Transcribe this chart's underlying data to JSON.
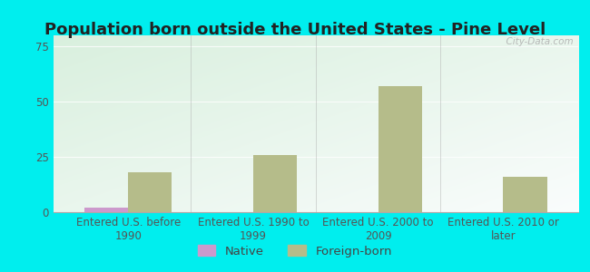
{
  "title": "Population born outside the United States - Pine Level",
  "categories": [
    "Entered U.S. before\n1990",
    "Entered U.S. 1990 to\n1999",
    "Entered U.S. 2000 to\n2009",
    "Entered U.S. 2010 or\nlater"
  ],
  "native_values": [
    2,
    0,
    0,
    0
  ],
  "foreign_born_values": [
    18,
    26,
    57,
    16
  ],
  "native_color": "#cc99cc",
  "foreign_born_color": "#b5bc8a",
  "background_color": "#00eeee",
  "ylim": [
    0,
    80
  ],
  "yticks": [
    0,
    25,
    50,
    75
  ],
  "bar_width": 0.35,
  "title_fontsize": 13,
  "tick_fontsize": 8.5,
  "legend_fontsize": 9.5,
  "watermark": "  City-Data.com"
}
